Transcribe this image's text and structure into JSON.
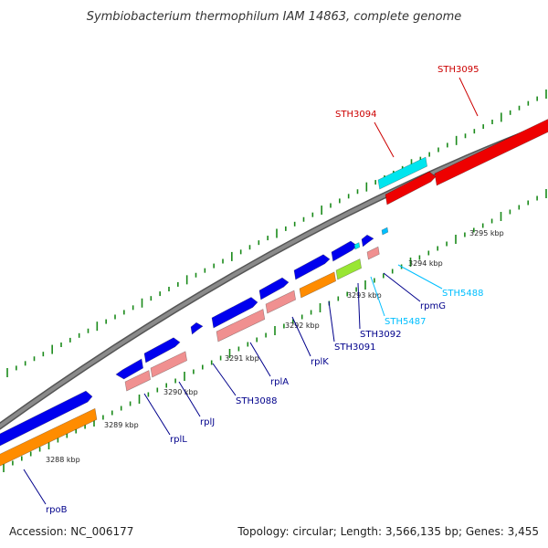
{
  "title": "Symbiobacterium thermophilum IAM 14863, complete genome",
  "accession": "Accession: NC_006177",
  "topology": "Topology: circular; Length: 3,566,135 bp; Genes: 3,455",
  "scale_ticks": [
    "3288 kbp",
    "3289 kbp",
    "3290 kbp",
    "3291 kbp",
    "3292 kbp",
    "3293 kbp",
    "3294 kbp",
    "3295 kbp"
  ],
  "colors": {
    "backbone": "#8a8a8a",
    "tick": "#1a8a1a",
    "cds": "#0000ee",
    "gene": "#f09090",
    "rrna_like": "#ff8c00",
    "trna_like": "#99e633",
    "red_cds": "#ee0000",
    "cyan_cds": "#00e5ee",
    "label_dark": "#00008b",
    "label_light": "#00bfff",
    "label_red": "#cc0000"
  },
  "gene_labels": [
    {
      "name": "rpoB",
      "color": "label_dark"
    },
    {
      "name": "rplL",
      "color": "label_dark"
    },
    {
      "name": "rplJ",
      "color": "label_dark"
    },
    {
      "name": "STH3088",
      "color": "label_dark"
    },
    {
      "name": "rplA",
      "color": "label_dark"
    },
    {
      "name": "rplK",
      "color": "label_dark"
    },
    {
      "name": "STH3091",
      "color": "label_dark"
    },
    {
      "name": "STH3092",
      "color": "label_dark"
    },
    {
      "name": "STH5487",
      "color": "label_light"
    },
    {
      "name": "rpmG",
      "color": "label_dark"
    },
    {
      "name": "STH5488",
      "color": "label_light"
    },
    {
      "name": "STH3094",
      "color": "label_red"
    },
    {
      "name": "STH3095",
      "color": "label_red"
    }
  ]
}
